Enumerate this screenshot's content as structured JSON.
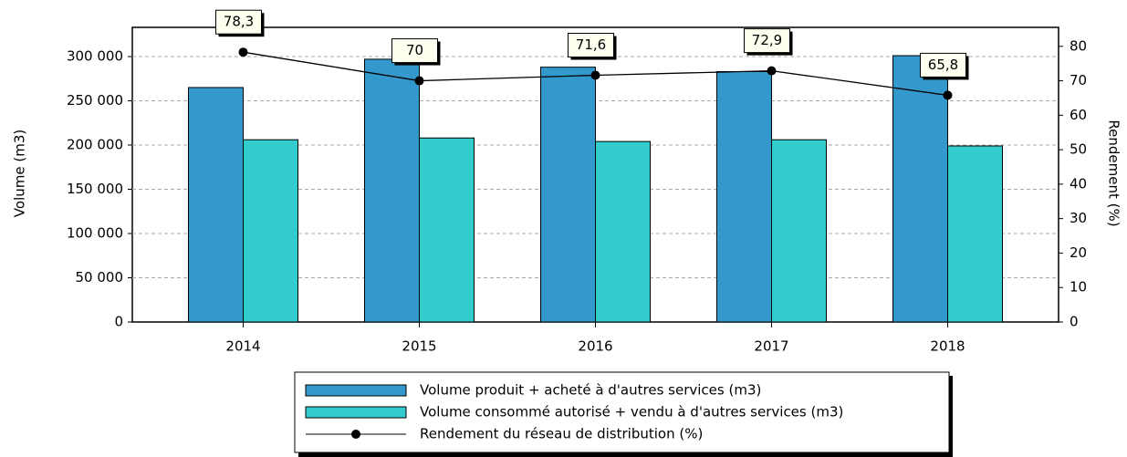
{
  "chart_data": {
    "type": "bar",
    "ylabel": "Volume (m3)",
    "y2label": "Rendement (%)",
    "categories": [
      "2014",
      "2015",
      "2016",
      "2017",
      "2018"
    ],
    "series": [
      {
        "name": "Volume produit + acheté à d'autres services (m3)",
        "type": "bar",
        "color": "#3399cc",
        "values": [
          265000,
          297000,
          288000,
          283000,
          301000
        ]
      },
      {
        "name": "Volume consommé autorisé + vendu à d'autres services (m3)",
        "type": "bar",
        "color": "#33cccc",
        "values": [
          206000,
          208000,
          204000,
          206000,
          199000
        ]
      },
      {
        "name": "Rendement du réseau de distribution (%)",
        "type": "line",
        "axis": "y2",
        "color": "#000000",
        "values": [
          78.3,
          70,
          71.6,
          72.9,
          65.8
        ],
        "value_labels": [
          "78,3",
          "70",
          "71,6",
          "72,9",
          "65,8"
        ]
      }
    ],
    "ylim": [
      0,
      333000
    ],
    "yticks": [
      0,
      {
        "value": 50000,
        "label": "50 000"
      },
      {
        "value": 100000,
        "label": "100 000"
      },
      {
        "value": 150000,
        "label": "150 000"
      },
      {
        "value": 200000,
        "label": "200 000"
      },
      {
        "value": 250000,
        "label": "250 000"
      },
      {
        "value": 300000,
        "label": "300 000"
      }
    ],
    "y2lim": [
      0,
      85.5
    ],
    "y2ticks": [
      0,
      10,
      20,
      30,
      40,
      50,
      60,
      70,
      80
    ],
    "grid": true,
    "legend": "bottom"
  }
}
